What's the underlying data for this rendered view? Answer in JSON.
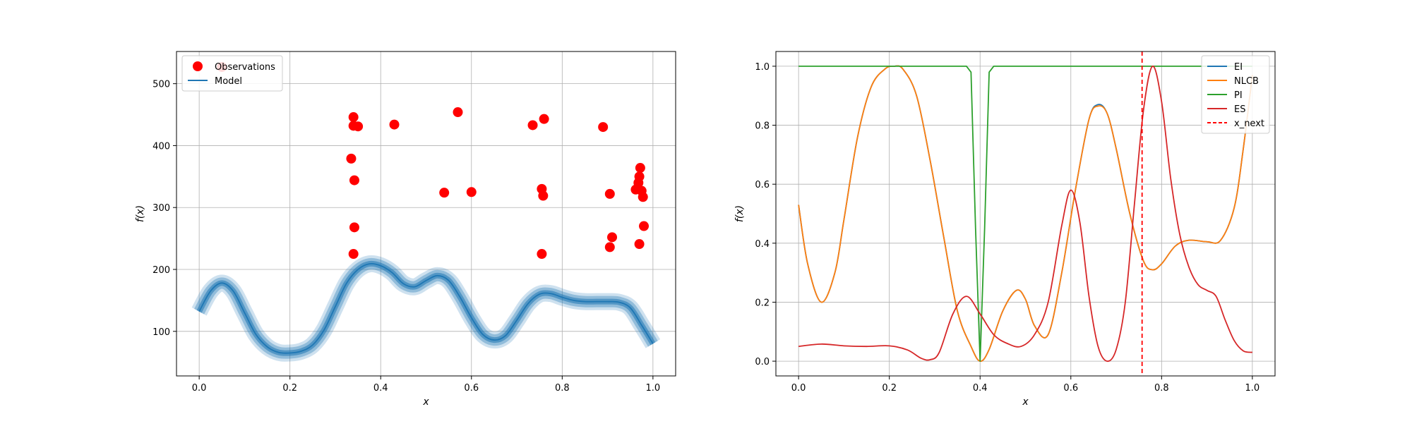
{
  "chart_data": [
    {
      "type": "scatter",
      "xlabel": "x",
      "ylabel": "f(x)",
      "xlim": [
        -0.05,
        1.05
      ],
      "ylim": [
        28,
        552
      ],
      "xticks": [
        0.0,
        0.2,
        0.4,
        0.6,
        0.8,
        1.0
      ],
      "xtick_labels": [
        "0.0",
        "0.2",
        "0.4",
        "0.6",
        "0.8",
        "1.0"
      ],
      "yticks": [
        100,
        200,
        300,
        400,
        500
      ],
      "ytick_labels": [
        "100",
        "200",
        "300",
        "400",
        "500"
      ],
      "grid": true,
      "legend_position": "top-left",
      "series": [
        {
          "name": "Observations",
          "kind": "scatter",
          "color": "#ff0000",
          "points": [
            {
              "x": 0.05,
              "y": 527
            },
            {
              "x": 0.335,
              "y": 379
            },
            {
              "x": 0.34,
              "y": 446
            },
            {
              "x": 0.34,
              "y": 432
            },
            {
              "x": 0.342,
              "y": 344
            },
            {
              "x": 0.342,
              "y": 268
            },
            {
              "x": 0.34,
              "y": 225
            },
            {
              "x": 0.35,
              "y": 431
            },
            {
              "x": 0.43,
              "y": 434
            },
            {
              "x": 0.54,
              "y": 324
            },
            {
              "x": 0.57,
              "y": 454
            },
            {
              "x": 0.6,
              "y": 325
            },
            {
              "x": 0.735,
              "y": 433
            },
            {
              "x": 0.755,
              "y": 330
            },
            {
              "x": 0.758,
              "y": 319
            },
            {
              "x": 0.76,
              "y": 443
            },
            {
              "x": 0.755,
              "y": 225
            },
            {
              "x": 0.89,
              "y": 430
            },
            {
              "x": 0.905,
              "y": 322
            },
            {
              "x": 0.91,
              "y": 252
            },
            {
              "x": 0.905,
              "y": 236
            },
            {
              "x": 0.962,
              "y": 329
            },
            {
              "x": 0.968,
              "y": 340
            },
            {
              "x": 0.97,
              "y": 350
            },
            {
              "x": 0.972,
              "y": 364
            },
            {
              "x": 0.975,
              "y": 327
            },
            {
              "x": 0.978,
              "y": 317
            },
            {
              "x": 0.98,
              "y": 270
            },
            {
              "x": 0.97,
              "y": 241
            }
          ]
        },
        {
          "name": "Model",
          "kind": "line",
          "color": "#1f77b4",
          "x": [
            0.0,
            0.025,
            0.05,
            0.075,
            0.1,
            0.125,
            0.15,
            0.175,
            0.2,
            0.225,
            0.25,
            0.275,
            0.3,
            0.325,
            0.35,
            0.375,
            0.4,
            0.425,
            0.45,
            0.475,
            0.5,
            0.525,
            0.55,
            0.575,
            0.6,
            0.625,
            0.65,
            0.675,
            0.7,
            0.725,
            0.75,
            0.775,
            0.8,
            0.825,
            0.85,
            0.875,
            0.9,
            0.925,
            0.95,
            0.975,
            1.0
          ],
          "y": [
            132,
            165,
            178,
            165,
            130,
            95,
            75,
            66,
            65,
            68,
            78,
            102,
            140,
            178,
            200,
            209,
            206,
            195,
            177,
            172,
            182,
            190,
            182,
            155,
            122,
            95,
            86,
            93,
            118,
            145,
            160,
            161,
            155,
            150,
            148,
            148,
            148,
            147,
            138,
            110,
            80
          ],
          "band_widths": [
            8,
            16,
            24
          ],
          "band_opacities": [
            0.55,
            0.35,
            0.22
          ]
        }
      ]
    },
    {
      "type": "line",
      "xlabel": "x",
      "ylabel": "f(x)",
      "xlim": [
        -0.05,
        1.05
      ],
      "ylim": [
        -0.05,
        1.05
      ],
      "xticks": [
        0.0,
        0.2,
        0.4,
        0.6,
        0.8,
        1.0
      ],
      "xtick_labels": [
        "0.0",
        "0.2",
        "0.4",
        "0.6",
        "0.8",
        "1.0"
      ],
      "yticks": [
        0.0,
        0.2,
        0.4,
        0.6,
        0.8,
        1.0
      ],
      "ytick_labels": [
        "0.0",
        "0.2",
        "0.4",
        "0.6",
        "0.8",
        "1.0"
      ],
      "grid": true,
      "legend_position": "top-right",
      "vline": {
        "name": "x_next",
        "x": 0.757,
        "color": "#ff0000",
        "style": "dashed"
      },
      "series": [
        {
          "name": "EI",
          "color": "#1f77b4",
          "x": [
            0.0,
            0.02,
            0.05,
            0.08,
            0.1,
            0.13,
            0.16,
            0.19,
            0.21,
            0.23,
            0.26,
            0.29,
            0.32,
            0.35,
            0.38,
            0.4,
            0.42,
            0.45,
            0.48,
            0.5,
            0.52,
            0.55,
            0.58,
            0.61,
            0.64,
            0.66,
            0.68,
            0.7,
            0.73,
            0.76,
            0.78,
            0.8,
            0.83,
            0.86,
            0.9,
            0.93,
            0.96,
            0.98,
            1.0
          ],
          "y": [
            0.53,
            0.33,
            0.2,
            0.3,
            0.48,
            0.76,
            0.93,
            0.99,
            1.0,
            0.99,
            0.9,
            0.68,
            0.42,
            0.17,
            0.05,
            0.0,
            0.04,
            0.17,
            0.24,
            0.21,
            0.12,
            0.09,
            0.3,
            0.58,
            0.82,
            0.87,
            0.84,
            0.72,
            0.5,
            0.34,
            0.31,
            0.33,
            0.39,
            0.41,
            0.405,
            0.41,
            0.52,
            0.72,
            0.97
          ]
        },
        {
          "name": "NLCB",
          "color": "#ff7f0e",
          "x": [
            0.0,
            0.02,
            0.05,
            0.08,
            0.1,
            0.13,
            0.16,
            0.19,
            0.21,
            0.23,
            0.26,
            0.29,
            0.32,
            0.35,
            0.38,
            0.4,
            0.42,
            0.45,
            0.48,
            0.5,
            0.52,
            0.55,
            0.58,
            0.61,
            0.64,
            0.66,
            0.68,
            0.7,
            0.73,
            0.76,
            0.78,
            0.8,
            0.83,
            0.86,
            0.9,
            0.93,
            0.96,
            0.98,
            1.0
          ],
          "y": [
            0.53,
            0.33,
            0.2,
            0.3,
            0.48,
            0.76,
            0.93,
            0.99,
            1.0,
            0.99,
            0.9,
            0.68,
            0.42,
            0.17,
            0.05,
            0.0,
            0.04,
            0.17,
            0.24,
            0.21,
            0.12,
            0.09,
            0.3,
            0.58,
            0.82,
            0.865,
            0.84,
            0.72,
            0.5,
            0.34,
            0.31,
            0.33,
            0.39,
            0.41,
            0.405,
            0.41,
            0.52,
            0.72,
            0.97
          ]
        },
        {
          "name": "PI",
          "color": "#2ca02c",
          "x": [
            0.0,
            0.37,
            0.38,
            0.39,
            0.4,
            0.41,
            0.42,
            0.43,
            1.0
          ],
          "y": [
            1.0,
            1.0,
            0.98,
            0.45,
            0.0,
            0.45,
            0.98,
            1.0,
            1.0
          ]
        },
        {
          "name": "ES",
          "color": "#d62728",
          "x": [
            0.0,
            0.05,
            0.1,
            0.15,
            0.2,
            0.24,
            0.27,
            0.29,
            0.31,
            0.34,
            0.37,
            0.4,
            0.43,
            0.46,
            0.49,
            0.52,
            0.55,
            0.58,
            0.6,
            0.62,
            0.64,
            0.66,
            0.68,
            0.7,
            0.72,
            0.74,
            0.76,
            0.78,
            0.8,
            0.82,
            0.84,
            0.86,
            0.88,
            0.9,
            0.92,
            0.94,
            0.96,
            0.98,
            1.0
          ],
          "y": [
            0.05,
            0.058,
            0.052,
            0.05,
            0.052,
            0.038,
            0.01,
            0.005,
            0.03,
            0.16,
            0.22,
            0.16,
            0.09,
            0.06,
            0.05,
            0.09,
            0.2,
            0.46,
            0.58,
            0.47,
            0.22,
            0.05,
            0.0,
            0.04,
            0.2,
            0.53,
            0.85,
            1.0,
            0.88,
            0.62,
            0.43,
            0.32,
            0.26,
            0.24,
            0.22,
            0.14,
            0.07,
            0.035,
            0.03
          ]
        }
      ]
    }
  ]
}
